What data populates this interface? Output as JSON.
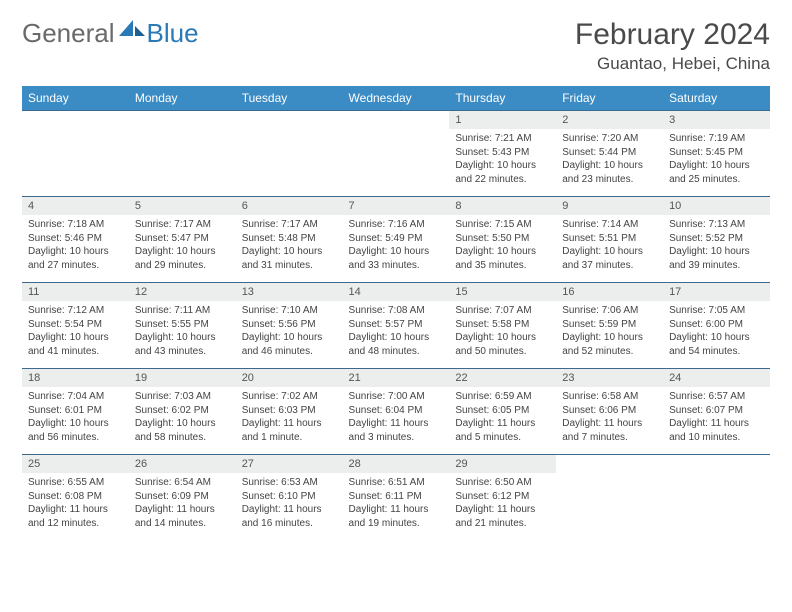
{
  "brand": {
    "part1": "General",
    "part2": "Blue"
  },
  "header": {
    "title": "February 2024",
    "location": "Guantao, Hebei, China"
  },
  "styles": {
    "background_color": "#ffffff",
    "header_bg": "#3b8bc4",
    "header_text": "#ffffff",
    "daynum_bg": "#eceded",
    "border_color": "#3b6a8e",
    "text_color": "#444444",
    "logo_gray": "#6a6a6a",
    "logo_blue": "#2a7ab8",
    "title_fontsize": 30,
    "cell_fontsize": 10
  },
  "weekdays": [
    "Sunday",
    "Monday",
    "Tuesday",
    "Wednesday",
    "Thursday",
    "Friday",
    "Saturday"
  ],
  "weeks": [
    [
      null,
      null,
      null,
      null,
      {
        "d": "1",
        "sr": "7:21 AM",
        "ss": "5:43 PM",
        "dl": "10 hours and 22 minutes."
      },
      {
        "d": "2",
        "sr": "7:20 AM",
        "ss": "5:44 PM",
        "dl": "10 hours and 23 minutes."
      },
      {
        "d": "3",
        "sr": "7:19 AM",
        "ss": "5:45 PM",
        "dl": "10 hours and 25 minutes."
      }
    ],
    [
      {
        "d": "4",
        "sr": "7:18 AM",
        "ss": "5:46 PM",
        "dl": "10 hours and 27 minutes."
      },
      {
        "d": "5",
        "sr": "7:17 AM",
        "ss": "5:47 PM",
        "dl": "10 hours and 29 minutes."
      },
      {
        "d": "6",
        "sr": "7:17 AM",
        "ss": "5:48 PM",
        "dl": "10 hours and 31 minutes."
      },
      {
        "d": "7",
        "sr": "7:16 AM",
        "ss": "5:49 PM",
        "dl": "10 hours and 33 minutes."
      },
      {
        "d": "8",
        "sr": "7:15 AM",
        "ss": "5:50 PM",
        "dl": "10 hours and 35 minutes."
      },
      {
        "d": "9",
        "sr": "7:14 AM",
        "ss": "5:51 PM",
        "dl": "10 hours and 37 minutes."
      },
      {
        "d": "10",
        "sr": "7:13 AM",
        "ss": "5:52 PM",
        "dl": "10 hours and 39 minutes."
      }
    ],
    [
      {
        "d": "11",
        "sr": "7:12 AM",
        "ss": "5:54 PM",
        "dl": "10 hours and 41 minutes."
      },
      {
        "d": "12",
        "sr": "7:11 AM",
        "ss": "5:55 PM",
        "dl": "10 hours and 43 minutes."
      },
      {
        "d": "13",
        "sr": "7:10 AM",
        "ss": "5:56 PM",
        "dl": "10 hours and 46 minutes."
      },
      {
        "d": "14",
        "sr": "7:08 AM",
        "ss": "5:57 PM",
        "dl": "10 hours and 48 minutes."
      },
      {
        "d": "15",
        "sr": "7:07 AM",
        "ss": "5:58 PM",
        "dl": "10 hours and 50 minutes."
      },
      {
        "d": "16",
        "sr": "7:06 AM",
        "ss": "5:59 PM",
        "dl": "10 hours and 52 minutes."
      },
      {
        "d": "17",
        "sr": "7:05 AM",
        "ss": "6:00 PM",
        "dl": "10 hours and 54 minutes."
      }
    ],
    [
      {
        "d": "18",
        "sr": "7:04 AM",
        "ss": "6:01 PM",
        "dl": "10 hours and 56 minutes."
      },
      {
        "d": "19",
        "sr": "7:03 AM",
        "ss": "6:02 PM",
        "dl": "10 hours and 58 minutes."
      },
      {
        "d": "20",
        "sr": "7:02 AM",
        "ss": "6:03 PM",
        "dl": "11 hours and 1 minute."
      },
      {
        "d": "21",
        "sr": "7:00 AM",
        "ss": "6:04 PM",
        "dl": "11 hours and 3 minutes."
      },
      {
        "d": "22",
        "sr": "6:59 AM",
        "ss": "6:05 PM",
        "dl": "11 hours and 5 minutes."
      },
      {
        "d": "23",
        "sr": "6:58 AM",
        "ss": "6:06 PM",
        "dl": "11 hours and 7 minutes."
      },
      {
        "d": "24",
        "sr": "6:57 AM",
        "ss": "6:07 PM",
        "dl": "11 hours and 10 minutes."
      }
    ],
    [
      {
        "d": "25",
        "sr": "6:55 AM",
        "ss": "6:08 PM",
        "dl": "11 hours and 12 minutes."
      },
      {
        "d": "26",
        "sr": "6:54 AM",
        "ss": "6:09 PM",
        "dl": "11 hours and 14 minutes."
      },
      {
        "d": "27",
        "sr": "6:53 AM",
        "ss": "6:10 PM",
        "dl": "11 hours and 16 minutes."
      },
      {
        "d": "28",
        "sr": "6:51 AM",
        "ss": "6:11 PM",
        "dl": "11 hours and 19 minutes."
      },
      {
        "d": "29",
        "sr": "6:50 AM",
        "ss": "6:12 PM",
        "dl": "11 hours and 21 minutes."
      },
      null,
      null
    ]
  ],
  "labels": {
    "sunrise": "Sunrise:",
    "sunset": "Sunset:",
    "daylight": "Daylight:"
  }
}
